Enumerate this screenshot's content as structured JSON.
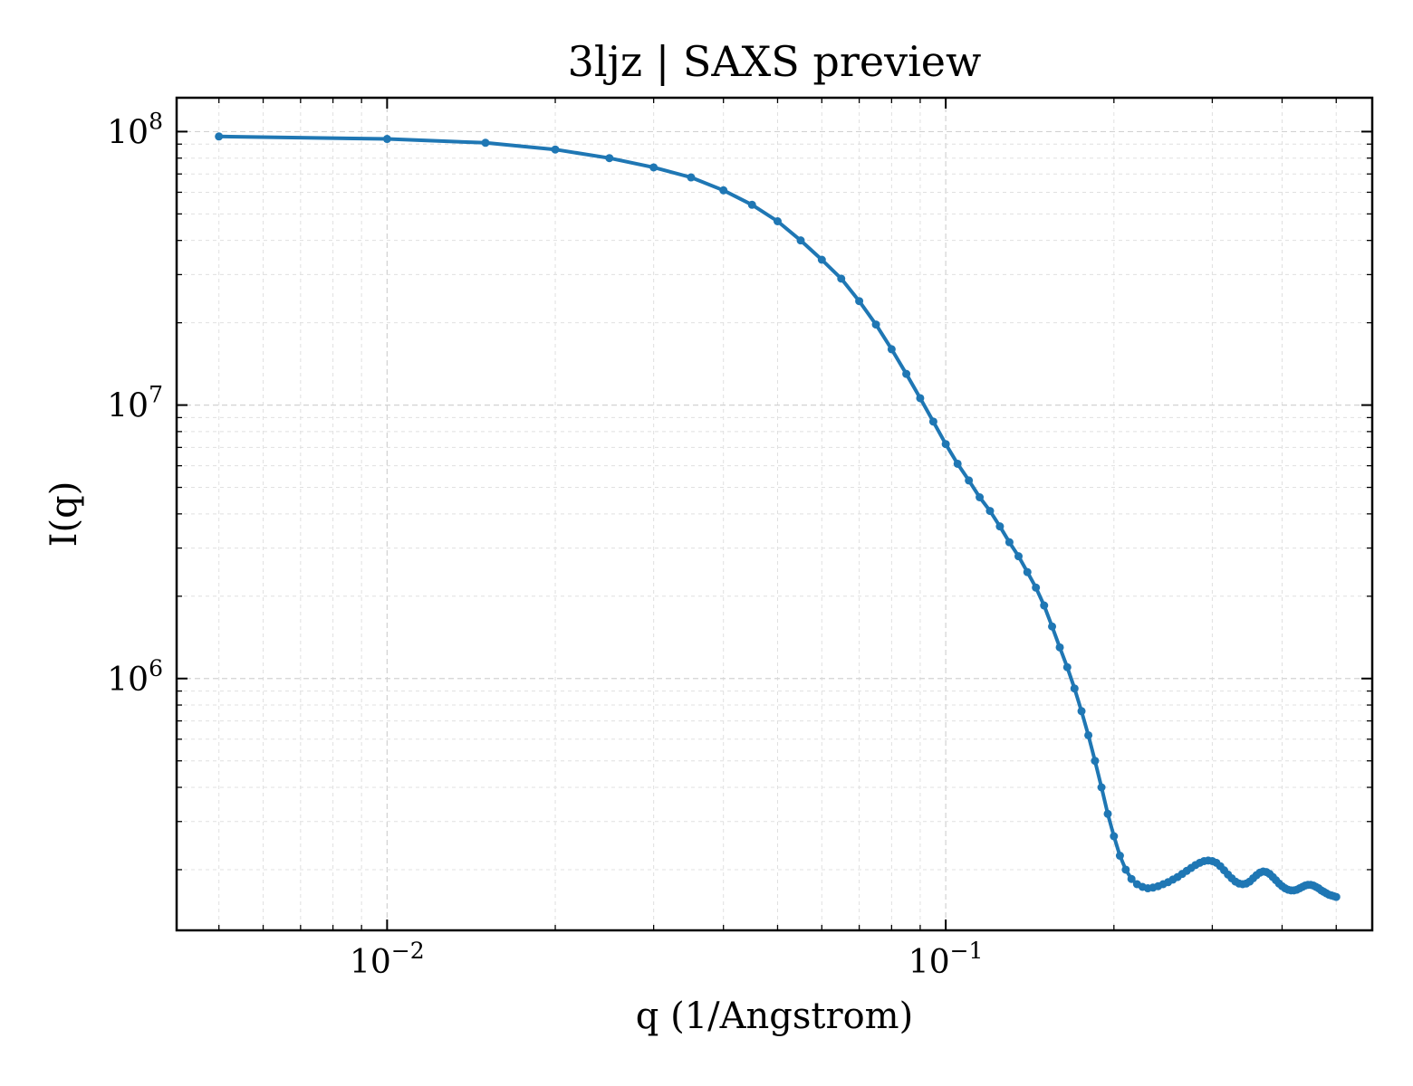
{
  "chart_data": {
    "type": "line",
    "title": "3ljz | SAXS preview",
    "xlabel": "q (1/Angstrom)",
    "ylabel": "I(q)",
    "xscale": "log",
    "yscale": "log",
    "xlim": [
      0.0042,
      0.58
    ],
    "ylim": [
      120000,
      133000000
    ],
    "grid": true,
    "legend": "none",
    "x_ticks": [
      {
        "value": 0.01,
        "base": "10",
        "exp": "−2"
      },
      {
        "value": 0.1,
        "base": "10",
        "exp": "−1"
      }
    ],
    "y_ticks": [
      {
        "value": 1000000,
        "base": "10",
        "exp": "6"
      },
      {
        "value": 10000000,
        "base": "10",
        "exp": "7"
      },
      {
        "value": 100000000,
        "base": "10",
        "exp": "8"
      }
    ],
    "series": [
      {
        "color": "#1f77b4",
        "marker": "circle",
        "x": [
          0.005,
          0.01,
          0.015,
          0.02,
          0.025,
          0.03,
          0.035,
          0.04,
          0.045,
          0.05,
          0.055,
          0.06,
          0.065,
          0.07,
          0.075,
          0.08,
          0.085,
          0.09,
          0.095,
          0.1,
          0.105,
          0.11,
          0.115,
          0.12,
          0.125,
          0.13,
          0.135,
          0.14,
          0.145,
          0.15,
          0.155,
          0.16,
          0.165,
          0.17,
          0.175,
          0.18,
          0.185,
          0.19,
          0.195,
          0.2,
          0.205,
          0.21,
          0.215,
          0.22,
          0.225,
          0.23,
          0.235,
          0.24,
          0.245,
          0.25,
          0.255,
          0.26,
          0.265,
          0.27,
          0.275,
          0.28,
          0.285,
          0.29,
          0.295,
          0.3,
          0.305,
          0.31,
          0.315,
          0.32,
          0.325,
          0.33,
          0.335,
          0.34,
          0.345,
          0.35,
          0.355,
          0.36,
          0.365,
          0.37,
          0.375,
          0.38,
          0.385,
          0.39,
          0.395,
          0.4,
          0.405,
          0.41,
          0.415,
          0.42,
          0.425,
          0.43,
          0.435,
          0.44,
          0.445,
          0.45,
          0.455,
          0.46,
          0.465,
          0.47,
          0.475,
          0.48,
          0.485,
          0.49,
          0.495,
          0.5
        ],
        "y": [
          96000000,
          94000000,
          91000000,
          86000000,
          80000000,
          74000000,
          68000000,
          61000000,
          54000000,
          47000000,
          40000000,
          34000000,
          29000000,
          24000000,
          19700000,
          16000000,
          13000000,
          10600000,
          8700000,
          7200000,
          6100000,
          5300000,
          4600000,
          4100000,
          3600000,
          3150000,
          2800000,
          2450000,
          2150000,
          1850000,
          1550000,
          1300000,
          1100000,
          920000,
          760000,
          620000,
          500000,
          400000,
          320000,
          265000,
          225000,
          200000,
          185000,
          177000,
          173000,
          171000,
          172000,
          174000,
          177000,
          180000,
          184000,
          188000,
          193000,
          198000,
          203000,
          208000,
          212000,
          215000,
          216000,
          215000,
          212000,
          206000,
          199000,
          192000,
          186000,
          181000,
          178000,
          177000,
          178000,
          181000,
          186000,
          191000,
          195000,
          197000,
          196000,
          193000,
          188000,
          183000,
          178000,
          174000,
          171000,
          169000,
          168000,
          168000,
          169000,
          171000,
          173000,
          175000,
          176000,
          176000,
          175000,
          173000,
          171000,
          168000,
          166000,
          164000,
          162000,
          161000,
          160000,
          159000
        ]
      }
    ]
  }
}
